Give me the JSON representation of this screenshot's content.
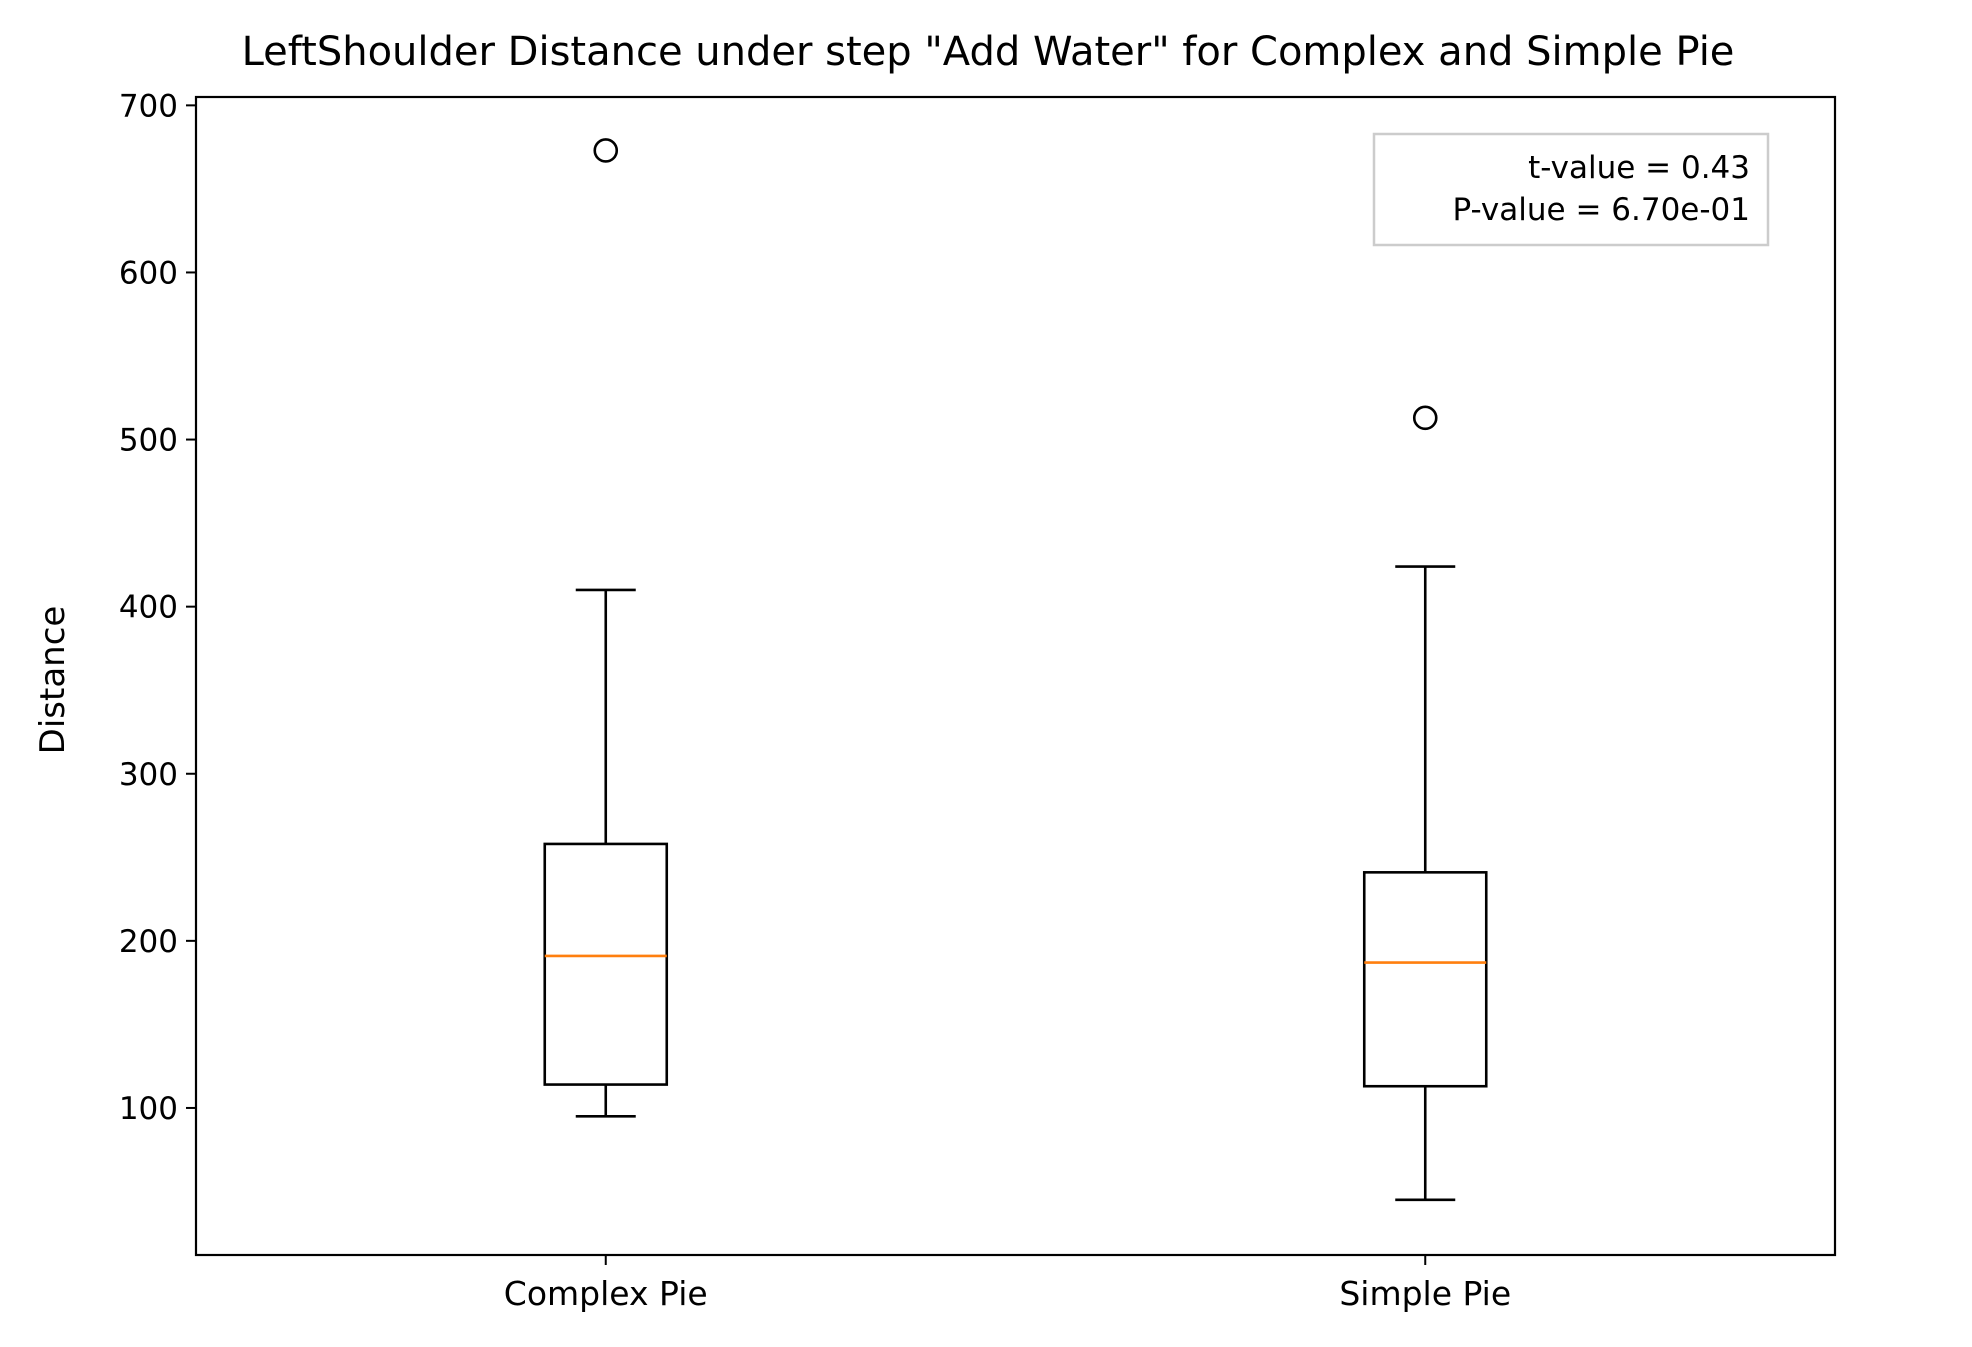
{
  "chart_data": {
    "type": "box",
    "title": "LeftShoulder Distance under step \"Add Water\" for Complex and Simple Pie",
    "xlabel": "",
    "ylabel": "Distance",
    "ylim": [
      12,
      705
    ],
    "yticks": [
      100,
      200,
      300,
      400,
      500,
      600,
      700
    ],
    "categories": [
      "Complex Pie",
      "Simple Pie"
    ],
    "boxes": [
      {
        "name": "Complex Pie",
        "whisker_low": 95,
        "q1": 114,
        "median": 191,
        "q3": 258,
        "whisker_high": 410,
        "outliers": [
          673
        ]
      },
      {
        "name": "Simple Pie",
        "whisker_low": 45,
        "q1": 113,
        "median": 187,
        "q3": 241,
        "whisker_high": 424,
        "outliers": [
          513
        ]
      }
    ],
    "annotation": {
      "lines": [
        "t-value = 0.43",
        "P-value = 6.70e-01"
      ],
      "placement": "top-right"
    },
    "colors": {
      "box": "#000000",
      "median": "#ff7f0e",
      "annotation_border": "#cccccc"
    },
    "grid": false
  }
}
